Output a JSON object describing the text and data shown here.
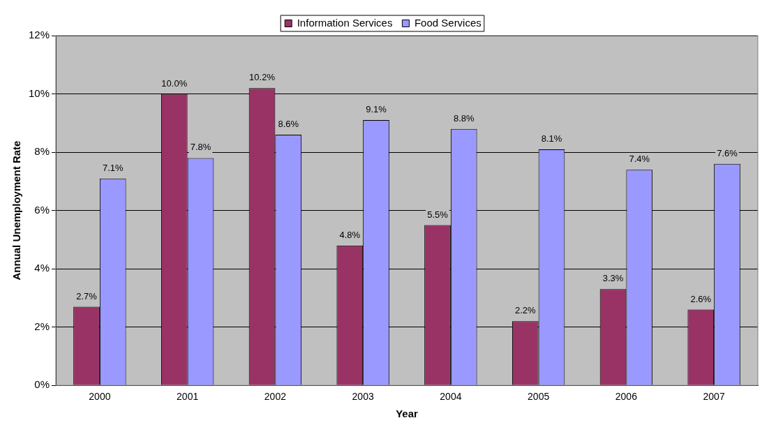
{
  "chart_data": {
    "type": "bar",
    "xlabel": "Year",
    "ylabel": "Annual Unemployment Rate",
    "categories": [
      "2000",
      "2001",
      "2002",
      "2003",
      "2004",
      "2005",
      "2006",
      "2007"
    ],
    "series": [
      {
        "name": "Information Services",
        "color": "#993366",
        "values": [
          2.7,
          10.0,
          10.2,
          4.8,
          5.5,
          2.2,
          3.3,
          2.6
        ],
        "value_labels": [
          "2.7%",
          "10.0%",
          "10.2%",
          "4.8%",
          "5.5%",
          "2.2%",
          "3.3%",
          "2.6%"
        ]
      },
      {
        "name": "Food Services",
        "color": "#9999ff",
        "values": [
          7.1,
          7.8,
          8.6,
          9.1,
          8.8,
          8.1,
          7.4,
          7.6
        ],
        "value_labels": [
          "7.1%",
          "7.8%",
          "8.6%",
          "9.1%",
          "8.8%",
          "8.1%",
          "7.4%",
          "7.6%"
        ]
      }
    ],
    "ylim": [
      0,
      12
    ],
    "yticks": [
      {
        "value": 0,
        "label": "0%"
      },
      {
        "value": 2,
        "label": "2%"
      },
      {
        "value": 4,
        "label": "4%"
      },
      {
        "value": 6,
        "label": "6%"
      },
      {
        "value": 8,
        "label": "8%"
      },
      {
        "value": 10,
        "label": "10%"
      },
      {
        "value": 12,
        "label": "12%"
      }
    ],
    "grid": "y",
    "legend": "top"
  }
}
